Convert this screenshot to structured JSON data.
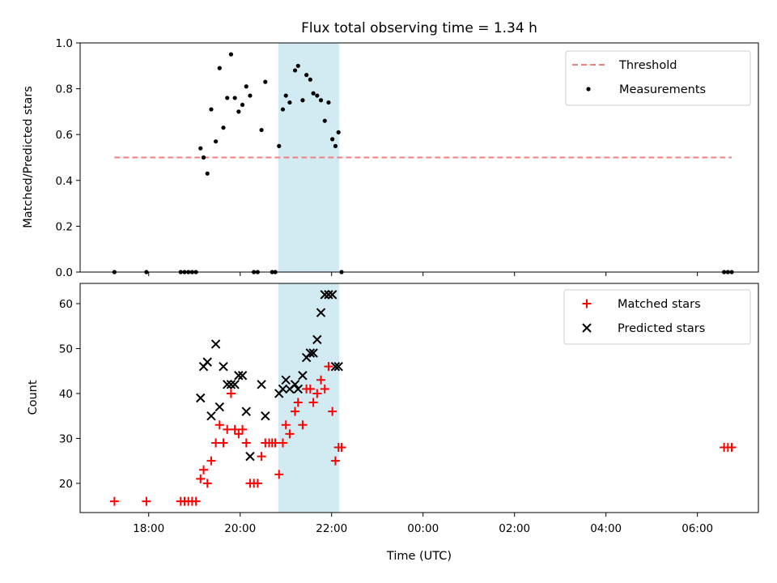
{
  "chart_data": [
    {
      "type": "scatter",
      "title": "Flux total observing time = 1.34 h",
      "xlabel": "",
      "ylabel": "Matched/Predicted stars",
      "ylim": [
        0,
        1.0
      ],
      "yticks": [
        "0.0",
        "0.2",
        "0.4",
        "0.6",
        "0.8",
        "1.0"
      ],
      "yticks_values": [
        0,
        0.2,
        0.4,
        0.6,
        0.8,
        1.0
      ],
      "legend": {
        "placement": "top-right",
        "entries": [
          "Threshold",
          "Measurements"
        ]
      },
      "threshold": {
        "name": "Threshold",
        "value": 0.5,
        "x_range": [
          "17:15",
          "06:45"
        ],
        "color": "#f08080",
        "style": "dashed"
      },
      "shaded_span": {
        "x_range": [
          "20:50",
          "22:10"
        ],
        "color": "#add8e6"
      },
      "series": [
        {
          "name": "Measurements",
          "color": "#000000",
          "points": [
            [
              "17:15",
              0
            ],
            [
              "17:57",
              0
            ],
            [
              "18:42",
              0
            ],
            [
              "18:47",
              0
            ],
            [
              "18:52",
              0
            ],
            [
              "18:57",
              0
            ],
            [
              "19:02",
              0
            ],
            [
              "19:08",
              0.54
            ],
            [
              "19:12",
              0.5
            ],
            [
              "19:17",
              0.43
            ],
            [
              "19:22",
              0.71
            ],
            [
              "19:28",
              0.57
            ],
            [
              "19:33",
              0.89
            ],
            [
              "19:38",
              0.63
            ],
            [
              "19:43",
              0.76
            ],
            [
              "19:48",
              0.95
            ],
            [
              "19:53",
              0.76
            ],
            [
              "19:58",
              0.7
            ],
            [
              "20:03",
              0.73
            ],
            [
              "20:08",
              0.81
            ],
            [
              "20:13",
              0.77
            ],
            [
              "20:18",
              0
            ],
            [
              "20:23",
              0
            ],
            [
              "20:28",
              0.62
            ],
            [
              "20:33",
              0.83
            ],
            [
              "20:42",
              0
            ],
            [
              "20:46",
              0
            ],
            [
              "20:51",
              0.55
            ],
            [
              "20:56",
              0.71
            ],
            [
              "21:00",
              0.77
            ],
            [
              "21:05",
              0.74
            ],
            [
              "21:12",
              0.88
            ],
            [
              "21:16",
              0.9
            ],
            [
              "21:22",
              0.75
            ],
            [
              "21:27",
              0.86
            ],
            [
              "21:32",
              0.84
            ],
            [
              "21:36",
              0.78
            ],
            [
              "21:41",
              0.77
            ],
            [
              "21:46",
              0.75
            ],
            [
              "21:51",
              0.66
            ],
            [
              "21:56",
              0.74
            ],
            [
              "22:01",
              0.58
            ],
            [
              "22:05",
              0.55
            ],
            [
              "22:09",
              0.61
            ],
            [
              "22:13",
              0
            ],
            [
              "06:35",
              0
            ],
            [
              "06:40",
              0
            ],
            [
              "06:45",
              0
            ]
          ]
        }
      ]
    },
    {
      "type": "scatter",
      "title": "",
      "xlabel": "Time (UTC)",
      "ylabel": "Count",
      "ylim": [
        13.5,
        64.5
      ],
      "yticks": [
        "20",
        "30",
        "40",
        "50",
        "60"
      ],
      "yticks_values": [
        20,
        30,
        40,
        50,
        60
      ],
      "x_axis": {
        "range": [
          "16:30",
          "07:20"
        ],
        "tick_labels": [
          "18:00",
          "20:00",
          "22:00",
          "00:00",
          "02:00",
          "04:00",
          "06:00"
        ]
      },
      "legend": {
        "placement": "top-right",
        "entries": [
          "Matched stars",
          "Predicted stars"
        ]
      },
      "shaded_span": {
        "x_range": [
          "20:50",
          "22:10"
        ],
        "color": "#add8e6"
      },
      "series": [
        {
          "name": "Matched stars",
          "color": "#ff0000",
          "marker": "+",
          "points": [
            [
              "17:15",
              16
            ],
            [
              "17:57",
              16
            ],
            [
              "18:42",
              16
            ],
            [
              "18:47",
              16
            ],
            [
              "18:52",
              16
            ],
            [
              "18:57",
              16
            ],
            [
              "19:02",
              16
            ],
            [
              "19:08",
              21
            ],
            [
              "19:12",
              23
            ],
            [
              "19:17",
              20
            ],
            [
              "19:22",
              25
            ],
            [
              "19:28",
              29
            ],
            [
              "19:33",
              33
            ],
            [
              "19:38",
              29
            ],
            [
              "19:43",
              32
            ],
            [
              "19:48",
              40
            ],
            [
              "19:53",
              32
            ],
            [
              "19:58",
              31
            ],
            [
              "20:03",
              32
            ],
            [
              "20:08",
              29
            ],
            [
              "20:13",
              20
            ],
            [
              "20:18",
              20
            ],
            [
              "20:23",
              20
            ],
            [
              "20:28",
              26
            ],
            [
              "20:33",
              29
            ],
            [
              "20:38",
              29
            ],
            [
              "20:42",
              29
            ],
            [
              "20:46",
              29
            ],
            [
              "20:51",
              22
            ],
            [
              "20:56",
              29
            ],
            [
              "21:00",
              33
            ],
            [
              "21:05",
              31
            ],
            [
              "21:12",
              36
            ],
            [
              "21:16",
              38
            ],
            [
              "21:22",
              33
            ],
            [
              "21:27",
              41
            ],
            [
              "21:32",
              41
            ],
            [
              "21:36",
              38
            ],
            [
              "21:41",
              40
            ],
            [
              "21:46",
              43
            ],
            [
              "21:51",
              41
            ],
            [
              "21:56",
              46
            ],
            [
              "22:01",
              36
            ],
            [
              "22:05",
              25
            ],
            [
              "22:09",
              28
            ],
            [
              "22:13",
              28
            ],
            [
              "06:35",
              28
            ],
            [
              "06:40",
              28
            ],
            [
              "06:45",
              28
            ]
          ]
        },
        {
          "name": "Predicted stars",
          "color": "#000000",
          "marker": "x",
          "points": [
            [
              "19:08",
              39
            ],
            [
              "19:12",
              46
            ],
            [
              "19:17",
              47
            ],
            [
              "19:22",
              35
            ],
            [
              "19:28",
              51
            ],
            [
              "19:33",
              37
            ],
            [
              "19:38",
              46
            ],
            [
              "19:43",
              42
            ],
            [
              "19:48",
              42
            ],
            [
              "19:53",
              42
            ],
            [
              "19:58",
              44
            ],
            [
              "20:03",
              44
            ],
            [
              "20:08",
              36
            ],
            [
              "20:13",
              26
            ],
            [
              "20:28",
              42
            ],
            [
              "20:33",
              35
            ],
            [
              "20:51",
              40
            ],
            [
              "20:56",
              41
            ],
            [
              "21:00",
              43
            ],
            [
              "21:05",
              41
            ],
            [
              "21:12",
              42
            ],
            [
              "21:16",
              41
            ],
            [
              "21:22",
              44
            ],
            [
              "21:27",
              48
            ],
            [
              "21:32",
              49
            ],
            [
              "21:36",
              49
            ],
            [
              "21:41",
              52
            ],
            [
              "21:46",
              58
            ],
            [
              "21:51",
              62
            ],
            [
              "21:56",
              62
            ],
            [
              "22:01",
              62
            ],
            [
              "22:05",
              46
            ],
            [
              "22:09",
              46
            ]
          ]
        }
      ]
    }
  ]
}
